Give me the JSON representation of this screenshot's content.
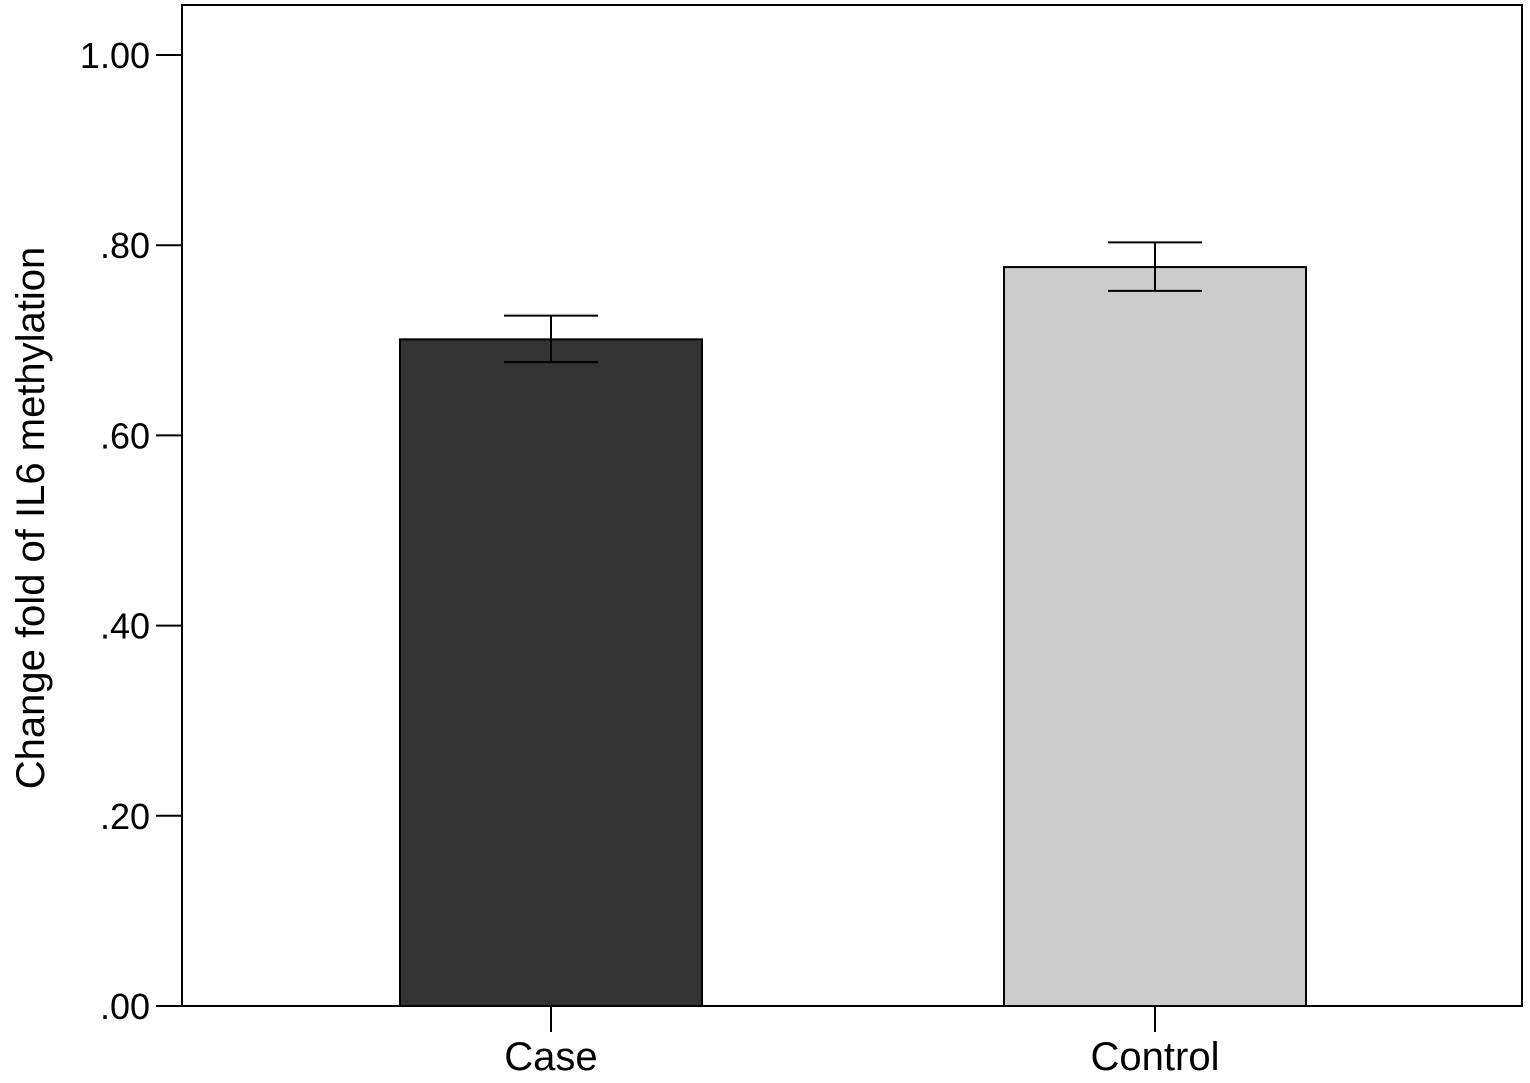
{
  "chart_data": {
    "type": "bar",
    "title": "",
    "xlabel": "",
    "ylabel": "Change fold of IL6 methylation",
    "categories": [
      "Case",
      "Control"
    ],
    "values": [
      0.701,
      0.777
    ],
    "error_bars": {
      "lower": [
        0.677,
        0.752
      ],
      "upper": [
        0.726,
        0.803
      ]
    },
    "ylim": [
      0,
      1.05
    ],
    "yticks": [
      0,
      0.2,
      0.4,
      0.6,
      0.8,
      1.0
    ],
    "ytick_labels": [
      ".00",
      ".20",
      ".40",
      ".60",
      ".80",
      "1.00"
    ],
    "bar_colors": [
      "#333333",
      "#cccccc"
    ],
    "grid": false,
    "legend": "none"
  }
}
